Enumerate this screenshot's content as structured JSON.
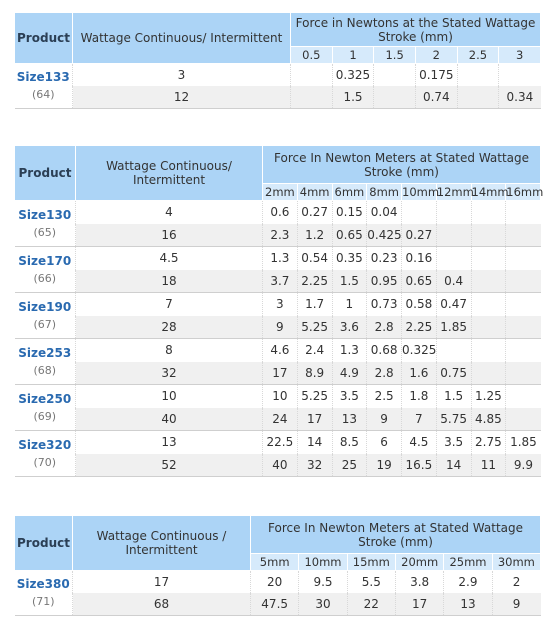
{
  "tables": [
    {
      "product": "Product",
      "wattage": "Wattage Continuous/ Intermittent",
      "force": "Force in Newtons at the Stated Wattage Stroke (mm)",
      "strokes": [
        0.5,
        1,
        1.5,
        2,
        2.5,
        3
      ],
      "products": [
        {
          "name": "Size133",
          "code": "(64)",
          "rows": [
            {
              "wattage": 3,
              "forces": [
                null,
                0.325,
                null,
                0.175,
                null,
                null
              ]
            },
            {
              "wattage": 12,
              "forces": [
                null,
                1.5,
                null,
                0.74,
                null,
                0.34
              ]
            }
          ]
        }
      ]
    },
    {
      "product": "Product",
      "wattage": "Wattage Continuous/ Intermittent",
      "force": "Force In Newton Meters at Stated Wattage Stroke (mm)",
      "strokes": [
        "2mm",
        "4mm",
        "6mm",
        "8mm",
        "10mm",
        "12mm",
        "14mm",
        "16mm"
      ],
      "products": [
        {
          "name": "Size130",
          "code": "(65)",
          "rows": [
            {
              "wattage": 4,
              "forces": [
                0.6,
                0.27,
                0.15,
                0.04,
                null,
                null,
                null,
                null
              ]
            },
            {
              "wattage": 16,
              "forces": [
                2.3,
                1.2,
                0.65,
                0.425,
                0.27,
                null,
                null,
                null
              ]
            }
          ]
        },
        {
          "name": "Size170",
          "code": "(66)",
          "rows": [
            {
              "wattage": 4.5,
              "forces": [
                1.3,
                0.54,
                0.35,
                0.23,
                0.16,
                null,
                null,
                null
              ]
            },
            {
              "wattage": 18,
              "forces": [
                3.7,
                2.25,
                1.5,
                0.95,
                0.65,
                0.4,
                null,
                null
              ]
            }
          ]
        },
        {
          "name": "Size190",
          "code": "(67)",
          "rows": [
            {
              "wattage": 7,
              "forces": [
                3,
                1.7,
                1,
                0.73,
                0.58,
                0.47,
                null,
                null
              ]
            },
            {
              "wattage": 28,
              "forces": [
                9,
                5.25,
                3.6,
                2.8,
                2.25,
                1.85,
                null,
                null
              ]
            }
          ]
        },
        {
          "name": "Size253",
          "code": "(68)",
          "rows": [
            {
              "wattage": 8,
              "forces": [
                4.6,
                2.4,
                1.3,
                0.68,
                0.325,
                null,
                null,
                null
              ]
            },
            {
              "wattage": 32,
              "forces": [
                17,
                8.9,
                4.9,
                2.8,
                1.6,
                0.75,
                null,
                null
              ]
            }
          ]
        },
        {
          "name": "Size250",
          "code": "(69)",
          "rows": [
            {
              "wattage": 10,
              "forces": [
                10,
                5.25,
                3.5,
                2.5,
                1.8,
                1.5,
                1.25,
                null
              ]
            },
            {
              "wattage": 40,
              "forces": [
                24,
                17,
                13,
                9,
                7,
                5.75,
                4.85,
                null
              ]
            }
          ]
        },
        {
          "name": "Size320",
          "code": "(70)",
          "rows": [
            {
              "wattage": 13,
              "forces": [
                22.5,
                14,
                8.5,
                6,
                4.5,
                3.5,
                2.75,
                1.85
              ]
            },
            {
              "wattage": 52,
              "forces": [
                40,
                32,
                25,
                19,
                16.5,
                14,
                11,
                9.9
              ]
            }
          ]
        }
      ]
    },
    {
      "product": "Product",
      "wattage": "Wattage Continuous / Intermittent",
      "force": "Force In Newton Meters at Stated Wattage Stroke (mm)",
      "strokes": [
        "5mm",
        "10mm",
        "15mm",
        "20mm",
        "25mm",
        "30mm"
      ],
      "products": [
        {
          "name": "Size380",
          "code": "(71)",
          "rows": [
            {
              "wattage": 17,
              "forces": [
                20,
                9.5,
                5.5,
                3.8,
                2.9,
                2
              ]
            },
            {
              "wattage": 68,
              "forces": [
                47.5,
                30,
                22,
                17,
                13,
                9
              ]
            }
          ]
        }
      ]
    }
  ]
}
